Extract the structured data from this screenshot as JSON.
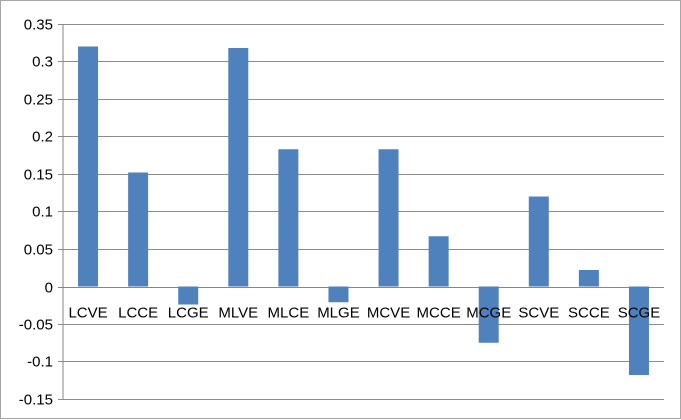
{
  "chart_data": {
    "type": "bar",
    "title": "",
    "xlabel": "",
    "ylabel": "",
    "categories": [
      "LCVE",
      "LCCE",
      "LCGE",
      "MLVE",
      "MLCE",
      "MLGE",
      "MCVE",
      "MCCE",
      "MCGE",
      "SCVE",
      "SCCE",
      "SCGE"
    ],
    "values": [
      0.32,
      0.152,
      -0.024,
      0.318,
      0.183,
      -0.021,
      0.183,
      0.067,
      -0.075,
      0.12,
      0.022,
      -0.118
    ],
    "ylim": [
      -0.15,
      0.35
    ],
    "yticks": [
      "0.35",
      "0.3",
      "0.25",
      "0.2",
      "0.15",
      "0.1",
      "0.05",
      "0",
      "-0.05",
      "-0.1",
      "-0.15"
    ],
    "grid": true,
    "legend": "none",
    "bar_color": "#4f81bd"
  }
}
